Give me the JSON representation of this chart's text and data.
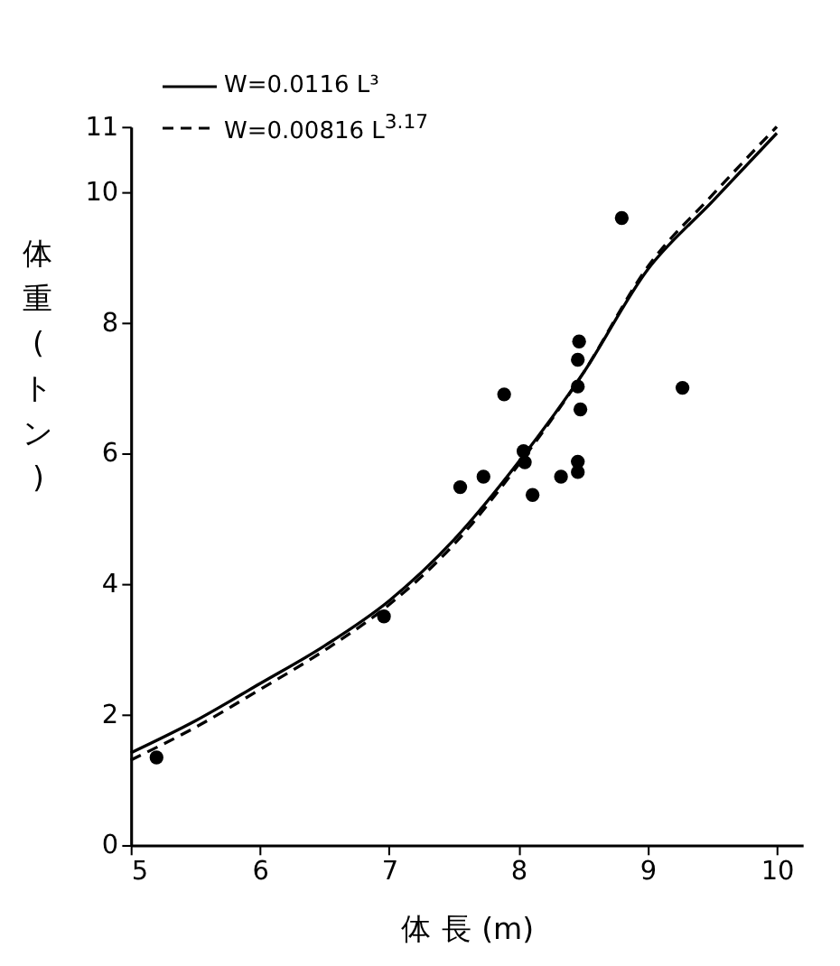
{
  "chart_data": {
    "type": "scatter",
    "xlabel": "体 長 (m)",
    "ylabel": "体重(トン)",
    "xlim": [
      5,
      10.2
    ],
    "xticks": [
      5,
      6,
      7,
      8,
      9,
      10
    ],
    "ylim": [
      0,
      11
    ],
    "yticks": [
      0,
      2,
      4,
      6,
      8,
      10,
      11
    ],
    "grid": false,
    "legend": "top left",
    "marker": "circle",
    "series": [
      {
        "type": "scatter",
        "color": "#000000",
        "x": [
          5.2,
          6.96,
          7.55,
          7.73,
          7.89,
          8.04,
          8.05,
          8.11,
          8.33,
          8.46,
          8.46,
          8.47,
          8.46,
          8.46,
          8.48,
          8.8,
          9.27
        ],
        "values": [
          1.34,
          3.5,
          5.48,
          5.64,
          6.9,
          6.03,
          5.86,
          5.36,
          5.64,
          5.87,
          5.71,
          7.71,
          7.43,
          7.02,
          6.67,
          9.6,
          7.0
        ]
      },
      {
        "type": "line",
        "name": "W=0.0116 L³",
        "color": "#000000",
        "line_style": "solid",
        "marker": "none",
        "x": [
          5,
          5.5,
          6,
          6.5,
          7,
          7.5,
          8,
          8.5,
          9,
          9.5,
          10
        ],
        "values": [
          1.41,
          1.9,
          2.47,
          3.05,
          3.74,
          4.67,
          5.86,
          7.22,
          8.81,
          9.85,
          10.9
        ]
      },
      {
        "type": "line",
        "name": "W=0.00816 L$^{3.17}$",
        "color": "#000000",
        "line_style": "dashed",
        "marker": "none",
        "x": [
          5,
          5.5,
          6,
          6.5,
          7,
          7.5,
          8,
          8.5,
          9,
          9.5,
          10
        ],
        "values": [
          1.3,
          1.8,
          2.38,
          2.98,
          3.68,
          4.6,
          5.82,
          7.22,
          8.85,
          9.95,
          11.0
        ]
      }
    ]
  }
}
